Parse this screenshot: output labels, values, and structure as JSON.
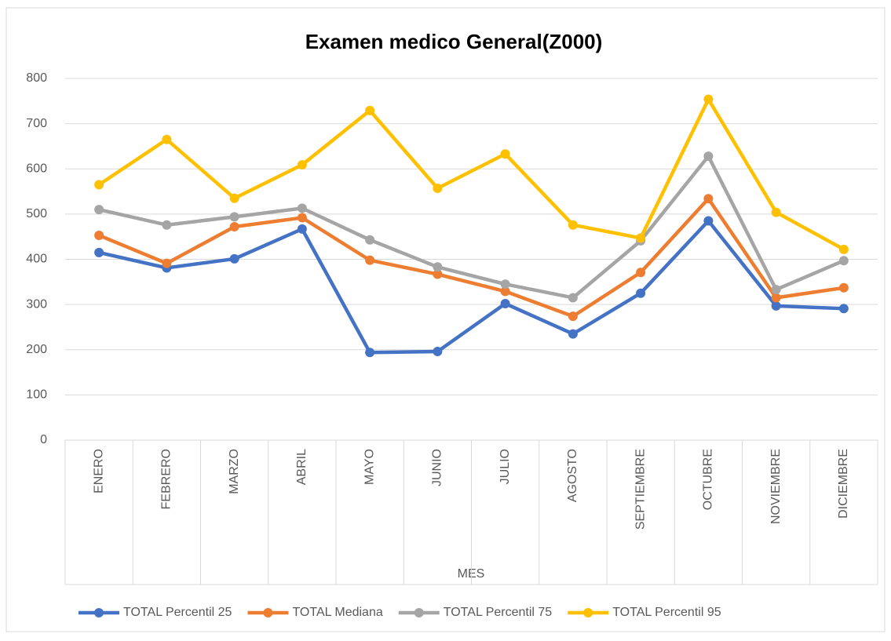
{
  "chart_data": {
    "type": "line",
    "title": "Examen medico General(Z000)",
    "x_label": "MES",
    "categories": [
      "ENERO",
      "FEBRERO",
      "MARZO",
      "ABRIL",
      "MAYO",
      "JUNIO",
      "JULIO",
      "AGOSTO",
      "SEPTIEMBRE",
      "OCTUBRE",
      "NOVIEMBRE",
      "DICIEMBRE"
    ],
    "series": [
      {
        "name": "TOTAL Percentil 25",
        "color": "#4472c4",
        "values": [
          415,
          381,
          401,
          467,
          194,
          196,
          302,
          235,
          325,
          485,
          297,
          291
        ]
      },
      {
        "name": "TOTAL Mediana",
        "color": "#ed7d31",
        "values": [
          453,
          391,
          472,
          492,
          398,
          367,
          329,
          274,
          371,
          534,
          315,
          337
        ]
      },
      {
        "name": "TOTAL Percentil 75",
        "color": "#a5a5a5",
        "values": [
          510,
          476,
          494,
          513,
          443,
          383,
          345,
          315,
          441,
          628,
          333,
          397
        ]
      },
      {
        "name": "TOTAL Percentil 95",
        "color": "#ffc000",
        "values": [
          565,
          665,
          535,
          609,
          729,
          557,
          633,
          476,
          447,
          754,
          504,
          422
        ]
      }
    ],
    "ylim": [
      0,
      800
    ],
    "yticks": [
      0,
      100,
      200,
      300,
      400,
      500,
      600,
      700,
      800
    ],
    "grid": true,
    "legend": "bottom"
  }
}
